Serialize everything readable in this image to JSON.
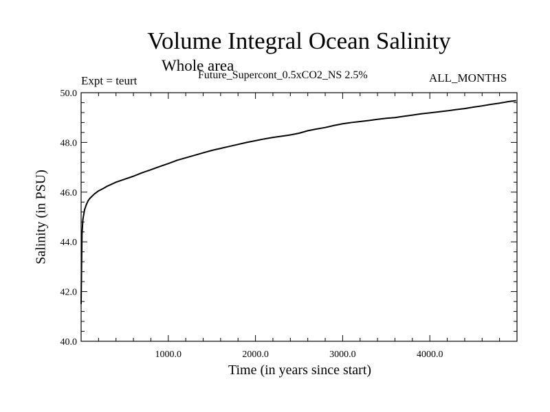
{
  "chart_data": {
    "type": "line",
    "title": "Volume Integral Ocean Salinity",
    "subtitle": "Whole area",
    "expt_label": "Expt = teurt",
    "experiment_label": "Future_Supercont_0.5xCO2_NS 2.5%",
    "months_label": "ALL_MONTHS",
    "xlabel": "Time (in years since start)",
    "ylabel": "Salinity (in PSU)",
    "xlim": [
      0,
      5000
    ],
    "ylim": [
      40.0,
      50.0
    ],
    "xticks": [
      1000,
      2000,
      3000,
      4000
    ],
    "xtick_labels": [
      "1000.0",
      "2000.0",
      "3000.0",
      "4000.0"
    ],
    "yticks": [
      40,
      42,
      44,
      46,
      48,
      50
    ],
    "ytick_labels": [
      "40.0",
      "42.0",
      "44.0",
      "46.0",
      "48.0",
      "50.0"
    ],
    "grid": false,
    "legend": "none",
    "line_color": "#000000",
    "series": [
      {
        "x": [
          0,
          5,
          10,
          20,
          40,
          60,
          80,
          100,
          150,
          200,
          250,
          300,
          400,
          500,
          600,
          700,
          800,
          900,
          1000,
          1100,
          1200,
          1300,
          1400,
          1500,
          1600,
          1700,
          1800,
          1900,
          2000,
          2100,
          2200,
          2300,
          2400,
          2500,
          2600,
          2700,
          2800,
          2900,
          3000,
          3100,
          3200,
          3300,
          3400,
          3500,
          3600,
          3700,
          3800,
          3900,
          4000,
          4100,
          4200,
          4300,
          4400,
          4500,
          4600,
          4700,
          4800,
          4900,
          4990
        ],
        "y": [
          41.5,
          43.0,
          44.3,
          44.9,
          45.3,
          45.5,
          45.65,
          45.75,
          45.92,
          46.05,
          46.14,
          46.24,
          46.4,
          46.52,
          46.64,
          46.78,
          46.9,
          47.03,
          47.15,
          47.28,
          47.38,
          47.48,
          47.58,
          47.68,
          47.76,
          47.84,
          47.92,
          48.0,
          48.07,
          48.14,
          48.2,
          48.25,
          48.3,
          48.37,
          48.47,
          48.54,
          48.6,
          48.68,
          48.75,
          48.8,
          48.84,
          48.88,
          48.93,
          48.97,
          49.0,
          49.05,
          49.1,
          49.15,
          49.19,
          49.23,
          49.27,
          49.32,
          49.36,
          49.42,
          49.47,
          49.53,
          49.58,
          49.64,
          49.68
        ]
      }
    ]
  }
}
